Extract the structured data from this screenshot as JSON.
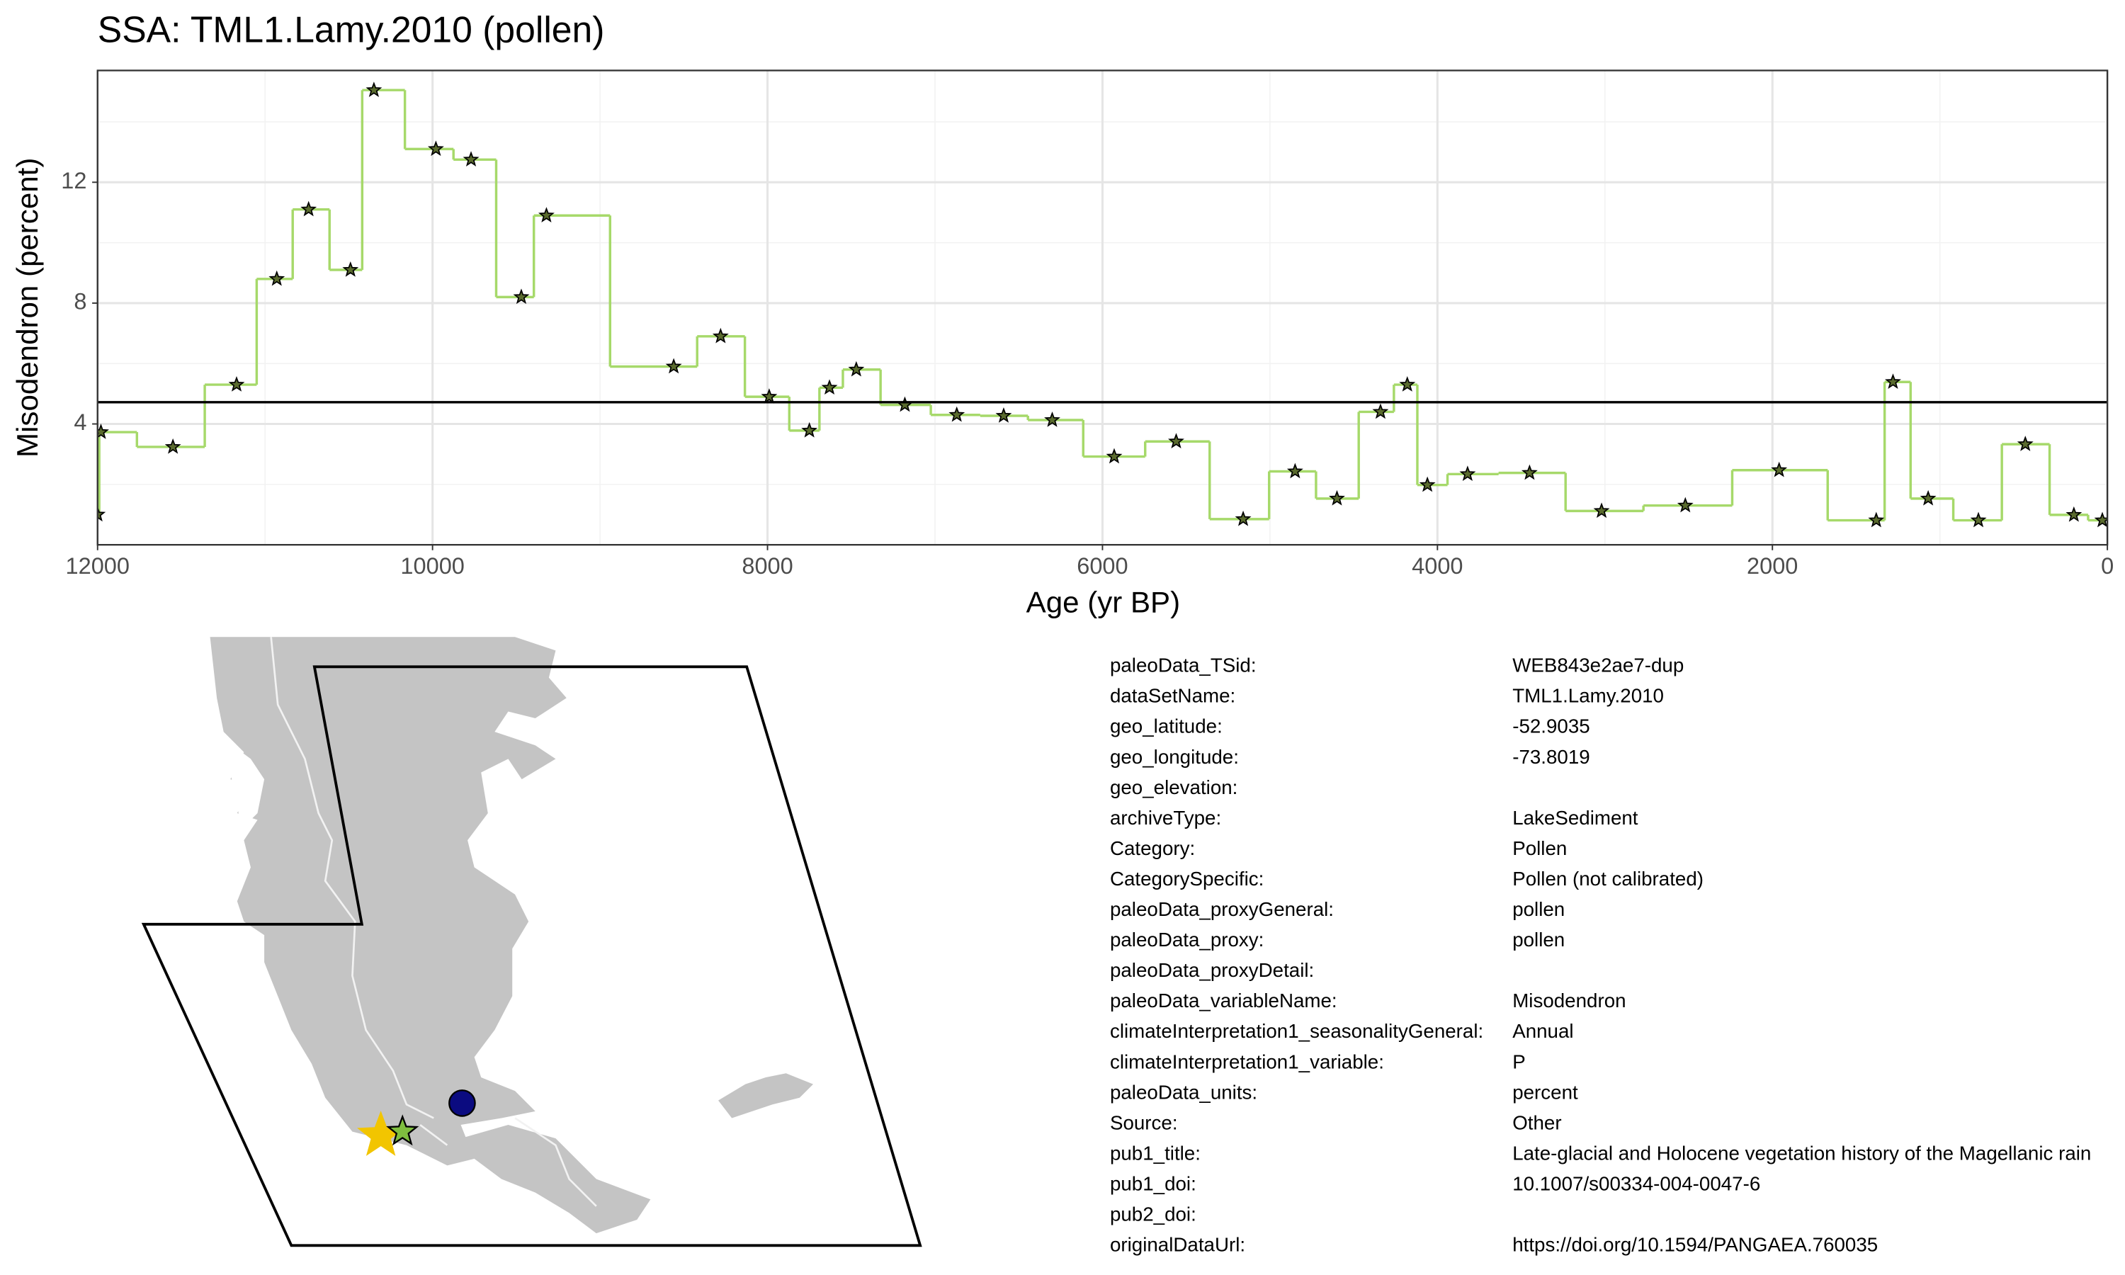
{
  "chart_data": {
    "type": "line",
    "step": "mid",
    "title": "SSA: TML1.Lamy.2010 (pollen)",
    "xlabel": "Age (yr BP)",
    "ylabel": "Misodendron (percent)",
    "xlim": [
      12000,
      0
    ],
    "xticks": [
      12000,
      10000,
      8000,
      6000,
      4000,
      2000,
      0
    ],
    "ylim": [
      0,
      15.7
    ],
    "yticks": [
      4,
      8,
      12
    ],
    "grid": true,
    "hline": 4.72,
    "hline_color": "#000000",
    "series": [
      {
        "name": "Misodendron",
        "color": "#a6d96a",
        "marker_color": "#5a6b2e",
        "x": [
          12000,
          11980,
          11550,
          11170,
          10930,
          10740,
          10490,
          10350,
          9980,
          9770,
          9470,
          9320,
          8560,
          8280,
          7990,
          7750,
          7630,
          7470,
          7180,
          6870,
          6590,
          6300,
          5930,
          5560,
          5160,
          4850,
          4600,
          4340,
          4180,
          4060,
          3820,
          3450,
          3020,
          2520,
          1960,
          1380,
          1280,
          1070,
          770,
          490,
          200,
          30
        ],
        "values": [
          1.0,
          3.73,
          3.24,
          5.3,
          8.8,
          11.1,
          9.1,
          15.05,
          13.1,
          12.75,
          8.2,
          10.9,
          5.9,
          6.9,
          4.9,
          3.78,
          5.2,
          5.8,
          4.63,
          4.3,
          4.27,
          4.13,
          2.92,
          3.42,
          0.85,
          2.43,
          1.53,
          4.4,
          5.3,
          1.98,
          2.34,
          2.38,
          1.12,
          1.3,
          2.47,
          0.81,
          5.39,
          1.53,
          0.81,
          3.33,
          0.99,
          0.81
        ]
      }
    ]
  },
  "metadata": {
    "rows": [
      {
        "key": "paleoData_TSid:",
        "value": "WEB843e2ae7-dup"
      },
      {
        "key": "dataSetName:",
        "value": "TML1.Lamy.2010"
      },
      {
        "key": "geo_latitude:",
        "value": "-52.9035"
      },
      {
        "key": "geo_longitude:",
        "value": "-73.8019"
      },
      {
        "key": "geo_elevation:"
      },
      {
        "key": "archiveType:",
        "value": "LakeSediment"
      },
      {
        "key": "Category:",
        "value": "Pollen"
      },
      {
        "key": "CategorySpecific:",
        "value": "Pollen (not calibrated)"
      },
      {
        "key": "paleoData_proxyGeneral:",
        "value": "pollen"
      },
      {
        "key": "paleoData_proxy:",
        "value": "pollen"
      },
      {
        "key": "paleoData_proxyDetail:"
      },
      {
        "key": "paleoData_variableName:",
        "value": "Misodendron"
      },
      {
        "key": "climateInterpretation1_seasonalityGeneral:",
        "value": "Annual"
      },
      {
        "key": "climateInterpretation1_variable:",
        "value": "P"
      },
      {
        "key": "paleoData_units:",
        "value": "percent"
      },
      {
        "key": "Source:",
        "value": "Other"
      },
      {
        "key": "pub1_title:",
        "value": "Late-glacial and Holocene vegetation history of the Magellanic rain"
      },
      {
        "key": "pub1_doi:",
        "value": "10.1007/s00334-004-0047-6"
      },
      {
        "key": "pub2_doi:"
      },
      {
        "key": "originalDataUrl:",
        "value": "https://doi.org/10.1594/PANGAEA.760035"
      }
    ]
  }
}
